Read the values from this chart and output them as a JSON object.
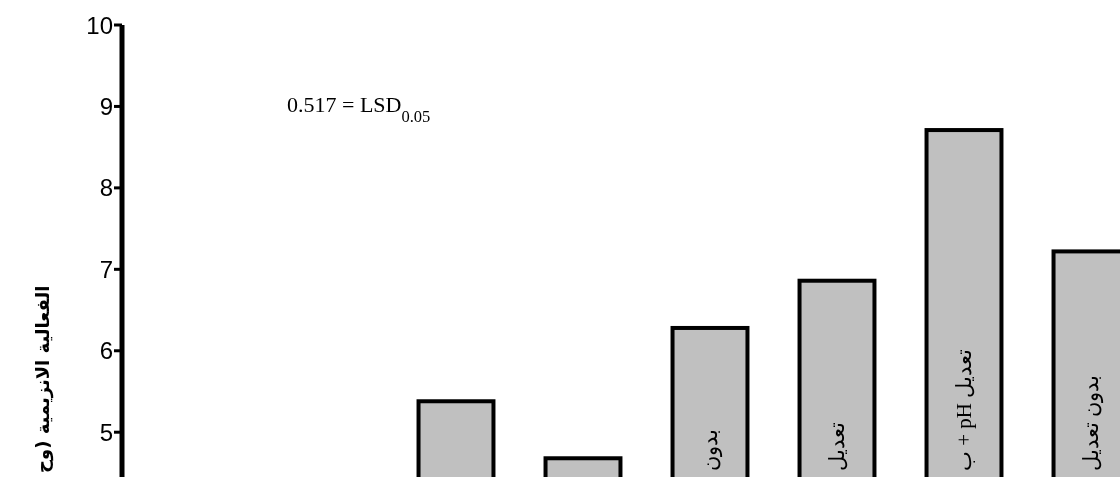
{
  "chart_data": {
    "type": "bar",
    "ylabel": "الفعالية الانزيمية (وح",
    "categories": [
      null,
      null,
      null,
      null,
      "بدون",
      "تعديل",
      "تعديل pH + ب",
      "بدون تعديل"
    ],
    "values": [
      null,
      null,
      5.38,
      4.68,
      6.28,
      6.86,
      8.71,
      7.22
    ],
    "color": "#c0c0c0",
    "ylim": [
      4.45,
      10
    ],
    "yticks": [
      5,
      6,
      7,
      8,
      9,
      10
    ],
    "annotations": [
      "0.517 = LSD$_{0.05}$"
    ],
    "grid": false
  }
}
